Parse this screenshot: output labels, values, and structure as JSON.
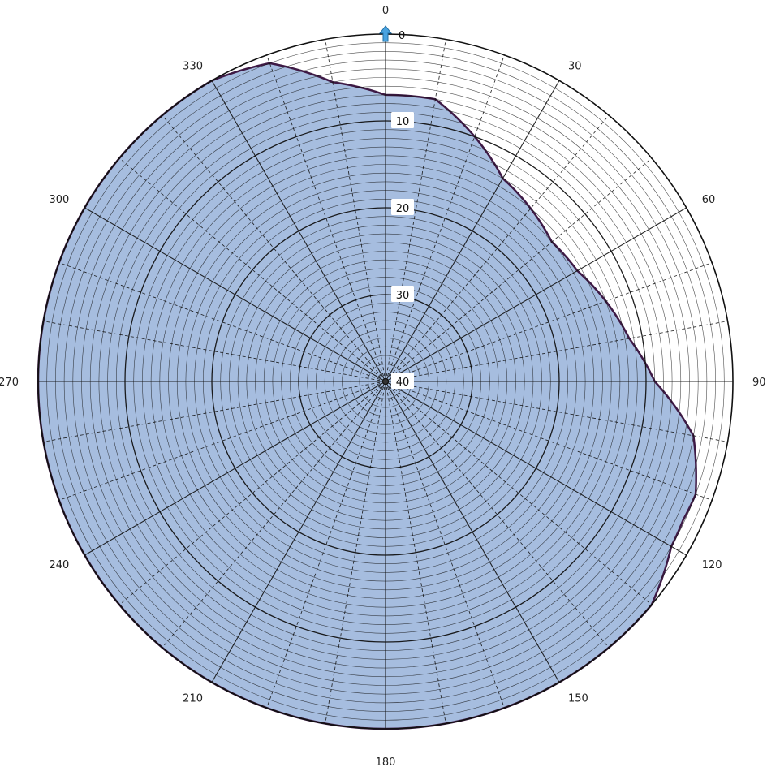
{
  "chart_data": {
    "type": "polar",
    "azimuth_labels": [
      "0",
      "30",
      "60",
      "90",
      "120",
      "150",
      "180",
      "210",
      "240",
      "270",
      "300",
      "330"
    ],
    "radial_ticks": [
      "0",
      "10",
      "20",
      "30",
      "40"
    ],
    "radial_axis": {
      "min": 0,
      "max": 40,
      "direction": "inward"
    },
    "angular_axis": {
      "start": 0,
      "direction": "clockwise",
      "major_step": 30,
      "minor_step": 10
    },
    "grid": true,
    "fill_color": "#a6bddf",
    "outline_color": "#3e1a45",
    "grid_color": "#111111",
    "north_marker_color": "#4aa3e0",
    "north_marker_icon": "north-arrow-icon",
    "series": [
      {
        "azimuth_deg": [
          0,
          10,
          20,
          30,
          40,
          50,
          60,
          70,
          80,
          90,
          100,
          110,
          115,
          120,
          130,
          140,
          150,
          160,
          170,
          180,
          190,
          200,
          210,
          220,
          230,
          240,
          250,
          260,
          270,
          280,
          290,
          300,
          310,
          320,
          330,
          340,
          350,
          360
        ],
        "value": [
          7,
          7,
          10,
          13,
          14,
          15,
          14.5,
          13,
          11.5,
          9,
          4,
          2,
          2.2,
          2,
          0,
          0,
          0,
          0,
          0,
          0,
          0,
          0,
          0,
          0,
          0,
          0,
          0,
          0,
          0,
          0,
          0,
          0,
          0,
          0,
          0,
          1,
          5,
          7
        ]
      }
    ]
  }
}
